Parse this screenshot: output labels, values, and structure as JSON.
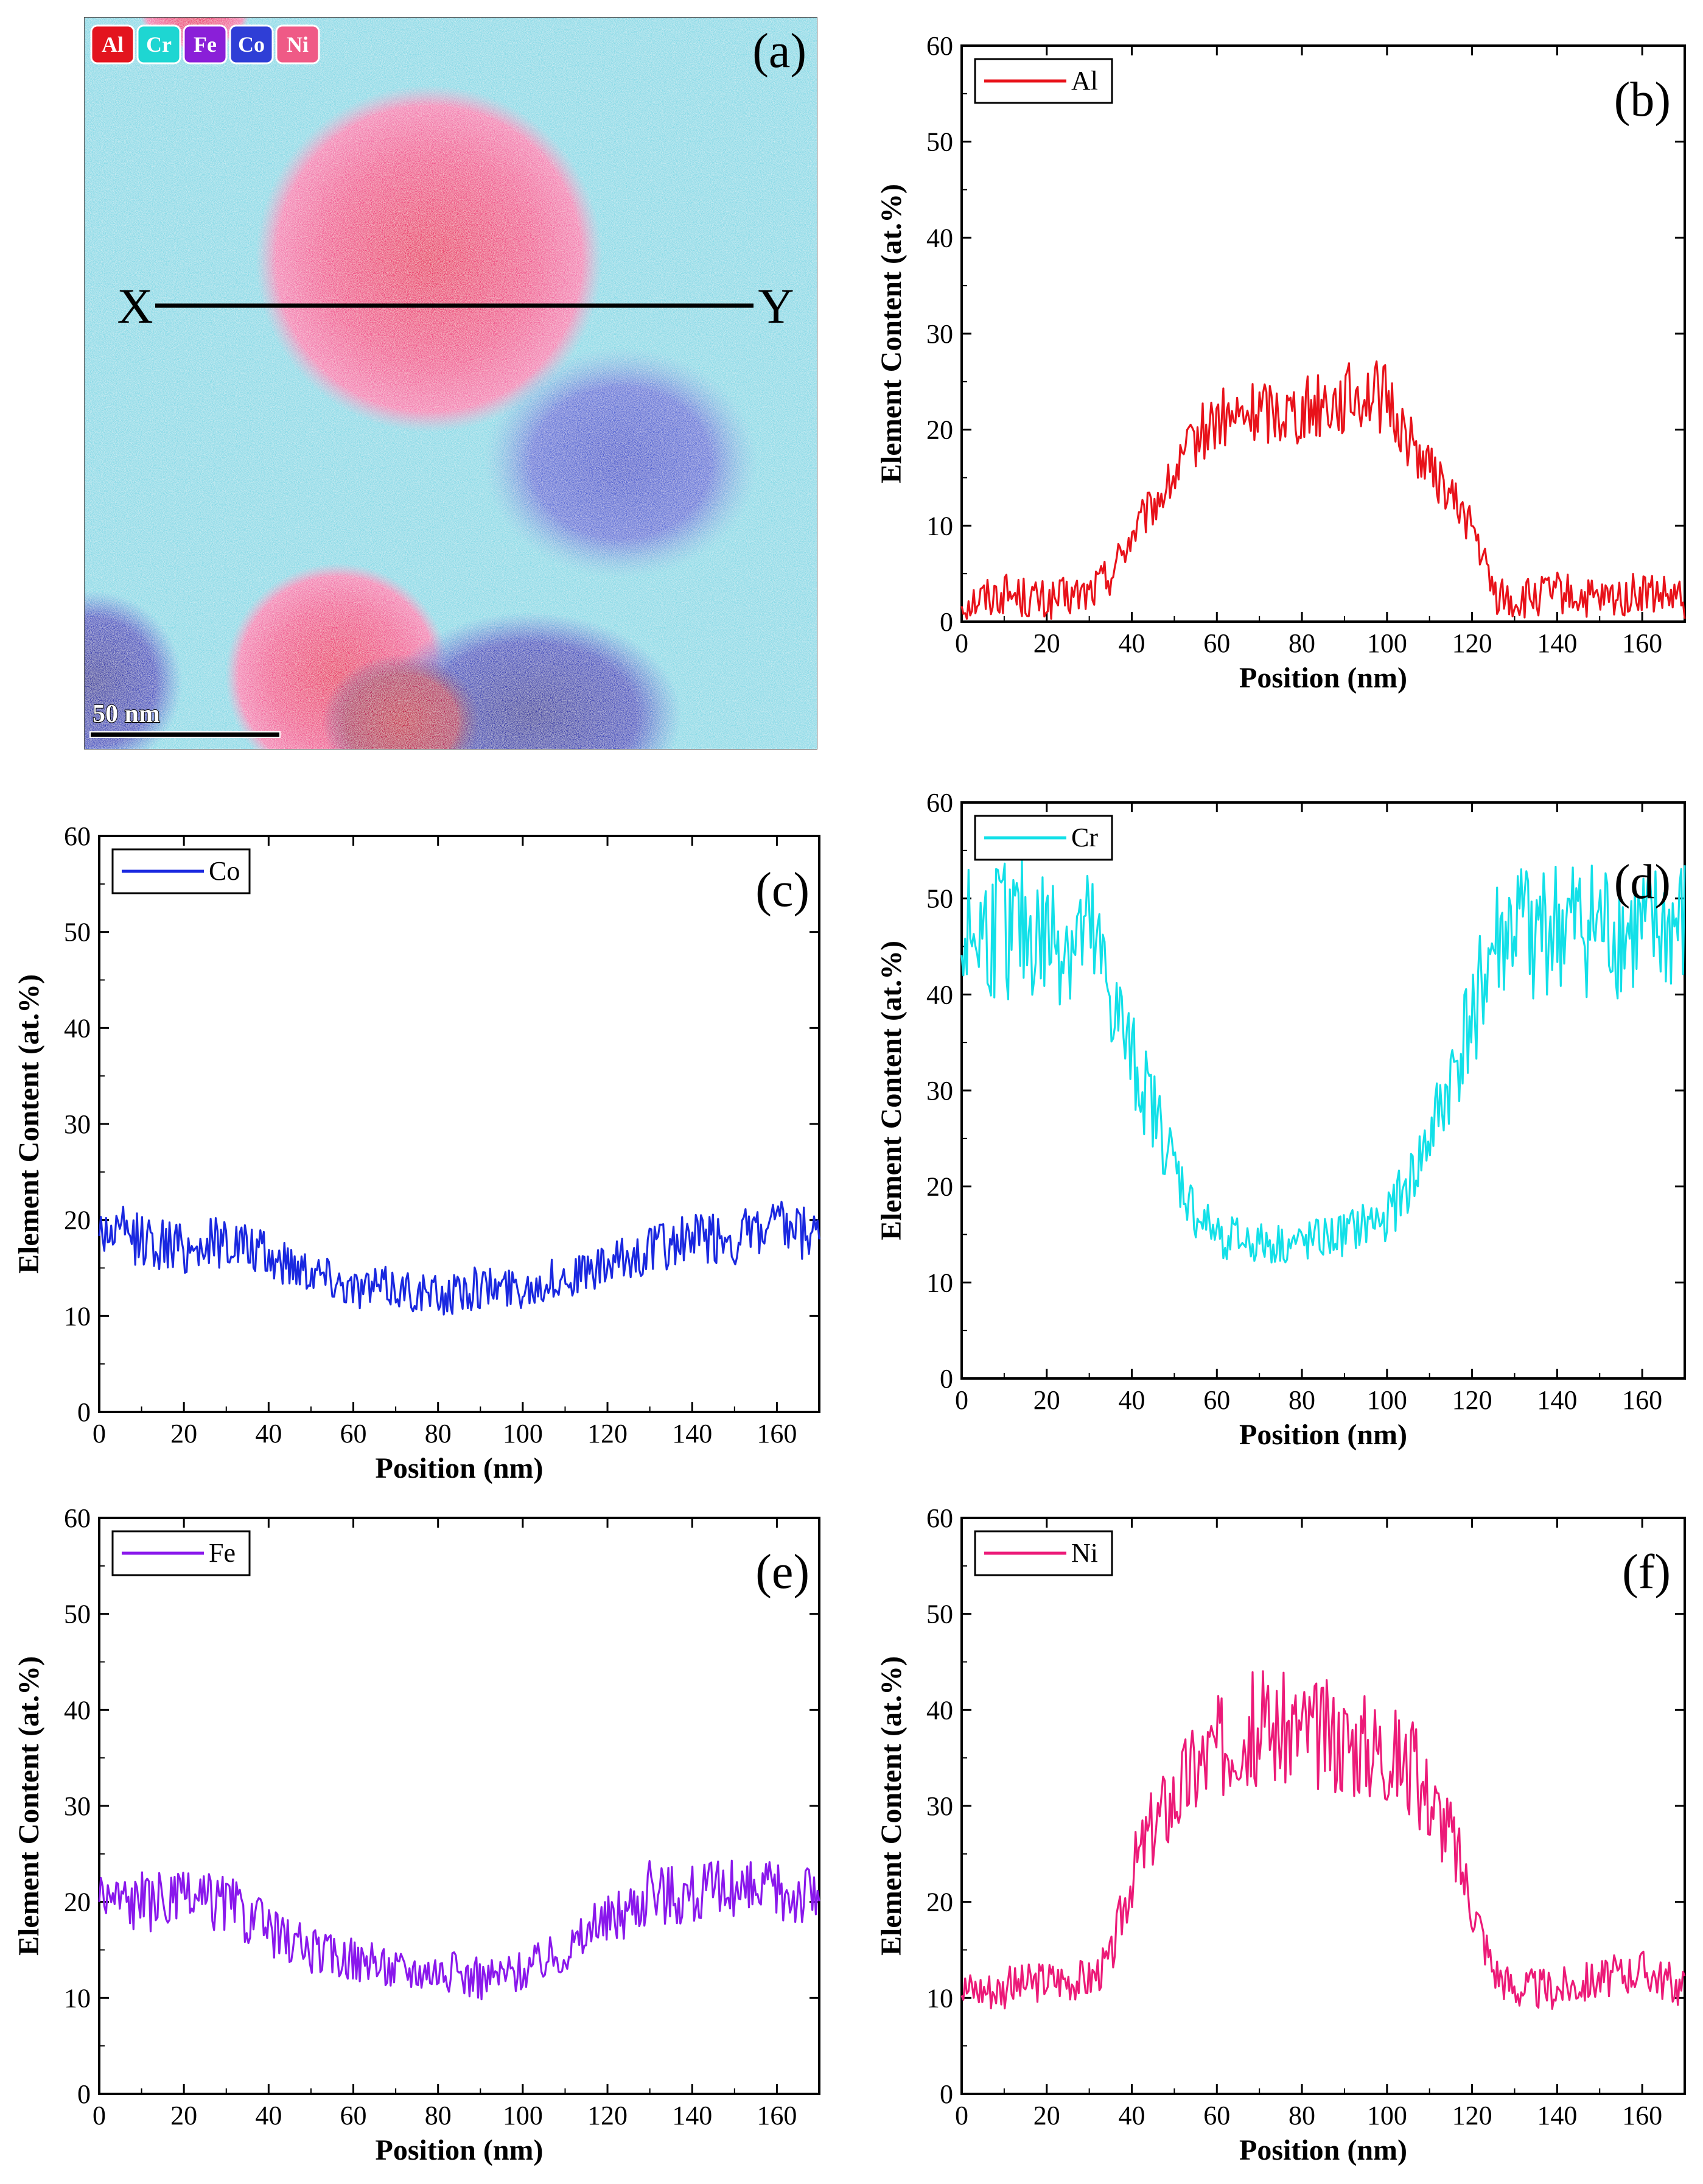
{
  "figure": {
    "panel_a": {
      "label": "(a)",
      "element_legend": [
        {
          "name": "Al",
          "color": "#e3141e"
        },
        {
          "name": "Cr",
          "color": "#1ed6d2"
        },
        {
          "name": "Fe",
          "color": "#8a1fd8"
        },
        {
          "name": "Co",
          "color": "#2f3ed6"
        },
        {
          "name": "Ni",
          "color": "#ef5a86"
        }
      ],
      "line_start_label": "X",
      "line_end_label": "Y",
      "scale_bar_label": "50 nm"
    }
  },
  "chart_data": [
    {
      "type": "line",
      "panel": "b",
      "label": "(b)",
      "element": "Al",
      "color": "#e8121a",
      "xlabel": "Position (nm)",
      "ylabel": "Element Content (at.%)",
      "xlim": [
        0,
        170
      ],
      "ylim": [
        0,
        60
      ],
      "xticks": [
        0,
        20,
        40,
        60,
        80,
        100,
        120,
        140,
        160
      ],
      "yticks": [
        0,
        10,
        20,
        30,
        40,
        50,
        60
      ],
      "series": [
        {
          "name": "Al",
          "x": [
            0,
            10,
            20,
            30,
            35,
            40,
            45,
            50,
            55,
            60,
            65,
            70,
            75,
            80,
            85,
            90,
            95,
            100,
            105,
            110,
            115,
            120,
            125,
            130,
            140,
            150,
            160,
            170
          ],
          "y": [
            2,
            3,
            2,
            3,
            5,
            9,
            12,
            15,
            19,
            21,
            21,
            22,
            22,
            22,
            23,
            23,
            24,
            23,
            19,
            16,
            13,
            10,
            3,
            2,
            3,
            2,
            3,
            2
          ]
        }
      ]
    },
    {
      "type": "line",
      "panel": "c",
      "label": "(c)",
      "element": "Co",
      "color": "#1a28e0",
      "xlabel": "Position (nm)",
      "ylabel": "Element Content (at.%)",
      "xlim": [
        0,
        170
      ],
      "ylim": [
        0,
        60
      ],
      "xticks": [
        0,
        20,
        40,
        60,
        80,
        100,
        120,
        140,
        160
      ],
      "yticks": [
        0,
        10,
        20,
        30,
        40,
        50,
        60
      ],
      "series": [
        {
          "name": "Co",
          "x": [
            0,
            10,
            20,
            30,
            40,
            50,
            60,
            70,
            80,
            90,
            100,
            110,
            120,
            130,
            140,
            150,
            160,
            170
          ],
          "y": [
            19,
            18,
            17,
            18,
            16,
            15,
            13,
            13,
            12,
            13,
            13,
            14,
            15,
            17,
            18,
            18,
            19,
            18
          ]
        }
      ]
    },
    {
      "type": "line",
      "panel": "d",
      "label": "(d)",
      "element": "Cr",
      "color": "#12e0e8",
      "xlabel": "Position (nm)",
      "ylabel": "Element Content (at.%)",
      "xlim": [
        0,
        170
      ],
      "ylim": [
        0,
        60
      ],
      "xticks": [
        0,
        20,
        40,
        60,
        80,
        100,
        120,
        140,
        160
      ],
      "yticks": [
        0,
        10,
        20,
        30,
        40,
        50,
        60
      ],
      "series": [
        {
          "name": "Cr",
          "x": [
            0,
            10,
            20,
            30,
            35,
            40,
            45,
            50,
            55,
            60,
            70,
            80,
            90,
            100,
            105,
            110,
            115,
            120,
            125,
            130,
            140,
            150,
            160,
            170
          ],
          "y": [
            46,
            47,
            46,
            46,
            40,
            33,
            28,
            22,
            17,
            15,
            14,
            14,
            15,
            17,
            20,
            25,
            31,
            38,
            45,
            47,
            47,
            47,
            46,
            47
          ]
        }
      ]
    },
    {
      "type": "line",
      "panel": "e",
      "label": "(e)",
      "element": "Fe",
      "color": "#8a18ec",
      "xlabel": "Position (nm)",
      "ylabel": "Element Content (at.%)",
      "xlim": [
        0,
        170
      ],
      "ylim": [
        0,
        60
      ],
      "xticks": [
        0,
        20,
        40,
        60,
        80,
        100,
        120,
        140,
        160
      ],
      "yticks": [
        0,
        10,
        20,
        30,
        40,
        50,
        60
      ],
      "series": [
        {
          "name": "Fe",
          "x": [
            0,
            10,
            20,
            30,
            40,
            50,
            60,
            70,
            80,
            90,
            100,
            110,
            120,
            130,
            140,
            150,
            160,
            170
          ],
          "y": [
            21,
            20,
            20,
            20,
            17,
            15,
            14,
            13,
            13,
            12,
            13,
            15,
            18,
            21,
            21,
            21,
            21,
            21
          ]
        }
      ]
    },
    {
      "type": "line",
      "panel": "f",
      "label": "(f)",
      "element": "Ni",
      "color": "#ec1a78",
      "xlabel": "Position (nm)",
      "ylabel": "Element Content (at.%)",
      "xlim": [
        0,
        170
      ],
      "ylim": [
        0,
        60
      ],
      "xticks": [
        0,
        20,
        40,
        60,
        80,
        100,
        120,
        140,
        160
      ],
      "yticks": [
        0,
        10,
        20,
        30,
        40,
        50,
        60
      ],
      "series": [
        {
          "name": "Ni",
          "x": [
            0,
            10,
            20,
            30,
            35,
            40,
            45,
            50,
            55,
            60,
            65,
            70,
            80,
            90,
            100,
            105,
            110,
            115,
            120,
            125,
            130,
            140,
            150,
            160,
            170
          ],
          "y": [
            11,
            11,
            12,
            12,
            14,
            23,
            28,
            31,
            34,
            36,
            38,
            38,
            38,
            37,
            36,
            34,
            31,
            27,
            20,
            13,
            11,
            11,
            12,
            13,
            11
          ]
        }
      ]
    }
  ]
}
